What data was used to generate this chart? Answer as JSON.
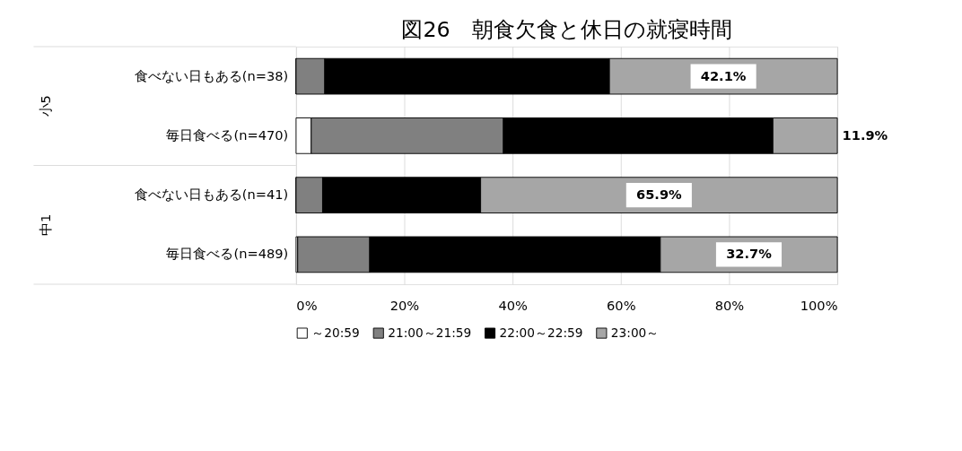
{
  "chart_data": {
    "type": "bar",
    "orientation": "horizontal",
    "stacked": true,
    "title": "図26　朝食欠食と休日の就寝時間",
    "categories": [
      "食べない日もある(n=38)",
      "毎日食べる(n=470)",
      "食べない日もある(n=41)",
      "毎日食べる(n=489)"
    ],
    "annotations": [
      "小5",
      "中1"
    ],
    "series": [
      {
        "name": "～20:59",
        "color": "#ffffff",
        "values": [
          0,
          2.8,
          0,
          0.3
        ]
      },
      {
        "name": "21:00～21:59",
        "color": "#808080",
        "values": [
          5.3,
          35.5,
          4.9,
          13.3
        ]
      },
      {
        "name": "22:00～22:59",
        "color": "#000000",
        "values": [
          52.6,
          49.8,
          29.2,
          53.7
        ]
      },
      {
        "name": "23:00～",
        "color": "#a6a6a6",
        "values": [
          42.1,
          11.9,
          65.9,
          32.7
        ],
        "value_labels": [
          "42.1%",
          "11.9%",
          "65.9%",
          "32.7%"
        ]
      }
    ],
    "xlim": [
      0,
      100
    ],
    "xticks": [
      {
        "value": 0,
        "label": "0%"
      },
      {
        "value": 20,
        "label": "20%"
      },
      {
        "value": 40,
        "label": "40%"
      },
      {
        "value": 60,
        "label": "60%"
      },
      {
        "value": 80,
        "label": "80%"
      },
      {
        "value": 100,
        "label": "100%"
      }
    ],
    "grid": "x",
    "legend": "bottom"
  }
}
